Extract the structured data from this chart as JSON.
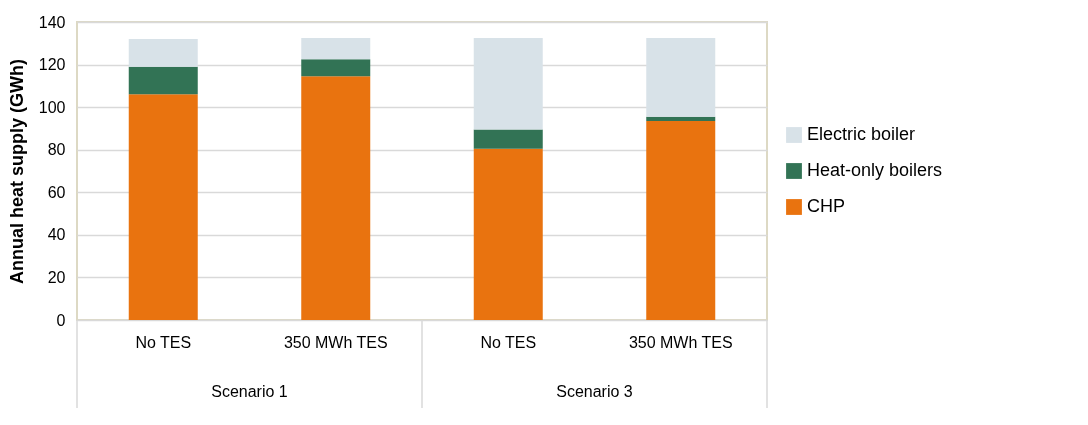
{
  "chart_data": {
    "type": "bar",
    "stacked": true,
    "ylabel": "Annual heat supply (GWh)",
    "categories": [
      "No TES",
      "350 MWh TES",
      "No TES",
      "350 MWh TES"
    ],
    "series": [
      {
        "name": "CHP",
        "color": "#e9730f",
        "values": [
          106,
          114.5,
          80.5,
          93.5
        ]
      },
      {
        "name": "Heat-only boilers",
        "color": "#327355",
        "values": [
          13,
          8,
          9,
          2
        ]
      },
      {
        "name": "Electric boiler",
        "color": "#d8e2e8",
        "values": [
          13,
          10,
          43,
          37
        ]
      }
    ],
    "annotations": [
      "Scenario 1",
      "Scenario 3"
    ],
    "ylim": [
      0,
      140
    ],
    "yticks": [
      0,
      20,
      40,
      60,
      80,
      100,
      120,
      140
    ],
    "grid": "y",
    "legend": "right"
  }
}
